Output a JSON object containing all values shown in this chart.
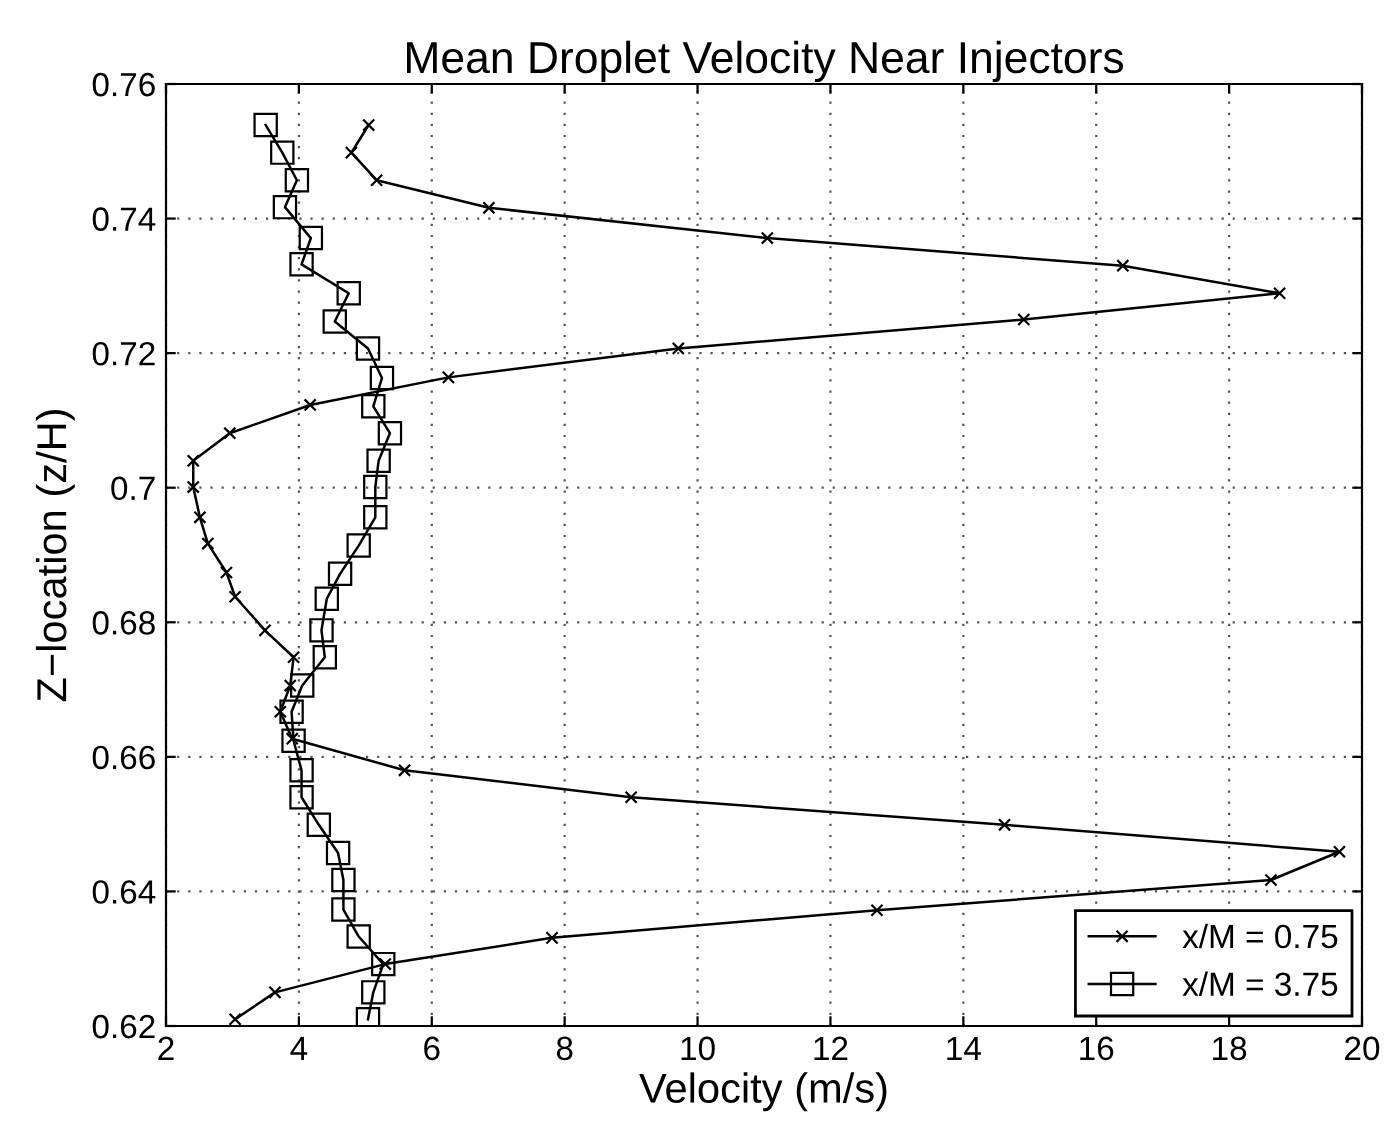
{
  "chart_data": {
    "type": "line",
    "title": "Mean Droplet Velocity Near Injectors",
    "xlabel": "Velocity (m/s)",
    "ylabel": "Z−location (z/H)",
    "xlim": [
      2,
      20
    ],
    "xticks": [
      2,
      4,
      6,
      8,
      10,
      12,
      14,
      16,
      18,
      20
    ],
    "ylim": [
      0.62,
      0.76
    ],
    "yticks": [
      0.62,
      0.64,
      0.66,
      0.68,
      0.7,
      0.72,
      0.74,
      0.76
    ],
    "grid": true,
    "legend": "bottom right",
    "line_style": "solid",
    "series": [
      {
        "name": "x/M = 0.75",
        "color": "#000000",
        "marker": "cross",
        "x": [
          5.05,
          4.79,
          5.17,
          6.86,
          11.05,
          16.4,
          18.76,
          14.91,
          9.71,
          6.25,
          4.17,
          2.96,
          2.41,
          2.41,
          2.51,
          2.63,
          2.91,
          3.04,
          3.49,
          3.92,
          3.87,
          3.72,
          3.9,
          5.59,
          9.0,
          14.62,
          19.66,
          18.63,
          12.7,
          7.81,
          5.3,
          3.64,
          3.04
        ],
        "values": [
          0.7539,
          0.7498,
          0.7457,
          0.7416,
          0.7371,
          0.733,
          0.7289,
          0.725,
          0.7207,
          0.7164,
          0.7123,
          0.7081,
          0.704,
          0.7001,
          0.6956,
          0.6917,
          0.6874,
          0.6838,
          0.6788,
          0.6748,
          0.6706,
          0.6667,
          0.6627,
          0.658,
          0.654,
          0.6499,
          0.6459,
          0.6417,
          0.6372,
          0.6331,
          0.6292,
          0.625,
          0.621
        ]
      },
      {
        "name": "x/M = 3.75",
        "color": "#000000",
        "marker": "square",
        "x": [
          3.5,
          3.75,
          3.97,
          3.79,
          4.18,
          4.04,
          4.75,
          4.54,
          5.04,
          5.25,
          5.12,
          5.37,
          5.2,
          5.15,
          5.15,
          4.9,
          4.62,
          4.42,
          4.34,
          4.39,
          4.05,
          3.89,
          3.92,
          4.04,
          4.04,
          4.3,
          4.59,
          4.67,
          4.67,
          4.9,
          5.27,
          5.12,
          5.04
        ],
        "values": [
          0.7539,
          0.7498,
          0.7457,
          0.7417,
          0.7371,
          0.7332,
          0.7289,
          0.7247,
          0.7207,
          0.7163,
          0.7121,
          0.7081,
          0.704,
          0.7001,
          0.6956,
          0.6914,
          0.6872,
          0.6835,
          0.6788,
          0.6748,
          0.6706,
          0.6667,
          0.6624,
          0.658,
          0.654,
          0.6499,
          0.6457,
          0.6417,
          0.6373,
          0.6333,
          0.6292,
          0.625,
          0.621
        ]
      }
    ]
  }
}
